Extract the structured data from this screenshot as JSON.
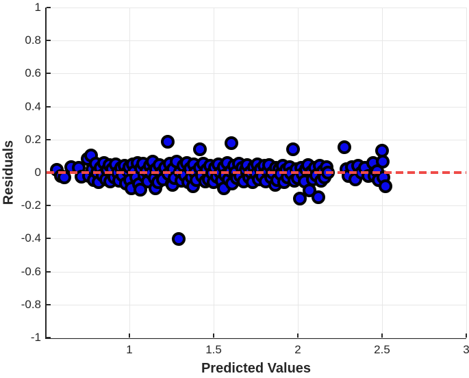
{
  "chart_data": {
    "type": "scatter",
    "title": "",
    "xlabel": "Predicted Values",
    "ylabel": "Residuals",
    "xlim": [
      0.508,
      3
    ],
    "ylim": [
      -1,
      1
    ],
    "grid": true,
    "legend": "none",
    "x_ticks": [
      1,
      1.5,
      2,
      2.5,
      3
    ],
    "x_tick_labels": [
      "1",
      "1.5",
      "2",
      "2.5",
      "3"
    ],
    "y_ticks": [
      -1,
      -0.8,
      -0.6,
      -0.4,
      -0.2,
      0,
      0.2,
      0.4,
      0.6,
      0.8,
      1
    ],
    "y_tick_labels": [
      "-1",
      "-0.8",
      "-0.6",
      "-0.4",
      "-0.2",
      "0",
      "0.2",
      "0.4",
      "0.6",
      "0.8",
      "1"
    ],
    "colors": {
      "marker_fill": "#0a0aeb",
      "marker_edge": "#000000",
      "zero_line": "#ef4b48",
      "axis": "#262626",
      "grid": "#e7e7e7",
      "text": "#262626"
    },
    "zero_line": {
      "y": 0,
      "style": "dashed"
    },
    "points": [
      [
        0.57,
        0.015
      ],
      [
        0.595,
        -0.02
      ],
      [
        0.615,
        -0.03
      ],
      [
        0.655,
        0.035
      ],
      [
        0.7,
        0.03
      ],
      [
        0.715,
        -0.025
      ],
      [
        0.752,
        0.083
      ],
      [
        0.772,
        0.104
      ],
      [
        0.76,
        -0.02
      ],
      [
        0.78,
        0.02
      ],
      [
        0.79,
        -0.045
      ],
      [
        0.8,
        0.055
      ],
      [
        0.81,
        0.0
      ],
      [
        0.815,
        -0.06
      ],
      [
        0.83,
        0.03
      ],
      [
        0.84,
        -0.015
      ],
      [
        0.85,
        0.06
      ],
      [
        0.86,
        -0.04
      ],
      [
        0.87,
        0.015
      ],
      [
        0.88,
        0.045
      ],
      [
        0.885,
        -0.055
      ],
      [
        0.9,
        0.02
      ],
      [
        0.91,
        -0.03
      ],
      [
        0.92,
        0.05
      ],
      [
        0.93,
        0.0
      ],
      [
        0.94,
        -0.05
      ],
      [
        0.95,
        0.03
      ],
      [
        0.96,
        -0.015
      ],
      [
        0.97,
        0.04
      ],
      [
        0.98,
        -0.065
      ],
      [
        0.99,
        0.01
      ],
      [
        1.0,
        0.035
      ],
      [
        1.005,
        -0.045
      ],
      [
        1.012,
        -0.095
      ],
      [
        1.02,
        0.05
      ],
      [
        1.03,
        0.005
      ],
      [
        1.04,
        -0.03
      ],
      [
        1.05,
        0.06
      ],
      [
        1.055,
        -0.07
      ],
      [
        1.065,
        -0.104
      ],
      [
        1.07,
        0.025
      ],
      [
        1.08,
        0.055
      ],
      [
        1.09,
        -0.02
      ],
      [
        1.1,
        0.01
      ],
      [
        1.11,
        -0.055
      ],
      [
        1.12,
        0.04
      ],
      [
        1.13,
        -0.005
      ],
      [
        1.14,
        0.065
      ],
      [
        1.15,
        -0.035
      ],
      [
        1.154,
        -0.095
      ],
      [
        1.16,
        0.02
      ],
      [
        1.17,
        -0.06
      ],
      [
        1.18,
        0.045
      ],
      [
        1.19,
        0.0
      ],
      [
        1.2,
        -0.04
      ],
      [
        1.21,
        0.03
      ],
      [
        1.228,
        0.187
      ],
      [
        1.23,
        -0.01
      ],
      [
        1.24,
        0.055
      ],
      [
        1.25,
        -0.065
      ],
      [
        1.256,
        -0.075
      ],
      [
        1.26,
        0.02
      ],
      [
        1.27,
        -0.035
      ],
      [
        1.28,
        0.065
      ],
      [
        1.293,
        -0.402
      ],
      [
        1.3,
        0.005
      ],
      [
        1.31,
        -0.05
      ],
      [
        1.32,
        0.04
      ],
      [
        1.33,
        -0.015
      ],
      [
        1.34,
        0.06
      ],
      [
        1.35,
        -0.06
      ],
      [
        1.36,
        0.025
      ],
      [
        1.37,
        -0.03
      ],
      [
        1.378,
        -0.083
      ],
      [
        1.38,
        0.05
      ],
      [
        1.39,
        0.0
      ],
      [
        1.4,
        -0.045
      ],
      [
        1.419,
        0.141
      ],
      [
        1.42,
        0.03
      ],
      [
        1.43,
        -0.02
      ],
      [
        1.44,
        0.055
      ],
      [
        1.45,
        -0.055
      ],
      [
        1.46,
        0.015
      ],
      [
        1.47,
        -0.04
      ],
      [
        1.48,
        0.04
      ],
      [
        1.49,
        -0.005
      ],
      [
        1.5,
        -0.06
      ],
      [
        1.51,
        0.03
      ],
      [
        1.52,
        -0.025
      ],
      [
        1.53,
        0.05
      ],
      [
        1.54,
        0.0
      ],
      [
        1.55,
        -0.05
      ],
      [
        1.561,
        -0.095
      ],
      [
        1.56,
        0.035
      ],
      [
        1.57,
        -0.015
      ],
      [
        1.58,
        0.06
      ],
      [
        1.59,
        -0.04
      ],
      [
        1.606,
        0.178
      ],
      [
        1.6,
        0.01
      ],
      [
        1.61,
        -0.065
      ],
      [
        1.62,
        0.04
      ],
      [
        1.63,
        0.0
      ],
      [
        1.64,
        -0.035
      ],
      [
        1.65,
        0.055
      ],
      [
        1.66,
        -0.02
      ],
      [
        1.67,
        0.03
      ],
      [
        1.68,
        -0.055
      ],
      [
        1.69,
        0.015
      ],
      [
        1.7,
        0.045
      ],
      [
        1.71,
        -0.03
      ],
      [
        1.72,
        0.005
      ],
      [
        1.73,
        -0.06
      ],
      [
        1.74,
        0.035
      ],
      [
        1.75,
        -0.01
      ],
      [
        1.76,
        0.05
      ],
      [
        1.77,
        -0.04
      ],
      [
        1.78,
        0.02
      ],
      [
        1.79,
        -0.02
      ],
      [
        1.8,
        0.04
      ],
      [
        1.81,
        -0.055
      ],
      [
        1.82,
        0.01
      ],
      [
        1.83,
        0.045
      ],
      [
        1.84,
        -0.03
      ],
      [
        1.85,
        0.0
      ],
      [
        1.866,
        -0.075
      ],
      [
        1.87,
        0.03
      ],
      [
        1.88,
        -0.045
      ],
      [
        1.89,
        0.02
      ],
      [
        1.9,
        -0.01
      ],
      [
        1.91,
        0.04
      ],
      [
        1.92,
        -0.06
      ],
      [
        1.93,
        0.015
      ],
      [
        1.94,
        -0.03
      ],
      [
        1.95,
        0.035
      ],
      [
        1.96,
        -0.005
      ],
      [
        1.972,
        0.141
      ],
      [
        1.98,
        -0.05
      ],
      [
        1.99,
        0.02
      ],
      [
        2.0,
        -0.035
      ],
      [
        2.012,
        -0.158
      ],
      [
        2.02,
        0.03
      ],
      [
        2.03,
        -0.01
      ],
      [
        2.04,
        -0.055
      ],
      [
        2.05,
        0.02
      ],
      [
        2.06,
        0.045
      ],
      [
        2.069,
        -0.108
      ],
      [
        2.08,
        0.005
      ],
      [
        2.09,
        -0.04
      ],
      [
        2.1,
        0.03
      ],
      [
        2.11,
        -0.015
      ],
      [
        2.122,
        -0.149
      ],
      [
        2.13,
        0.04
      ],
      [
        2.14,
        -0.05
      ],
      [
        2.15,
        0.01
      ],
      [
        2.16,
        -0.03
      ],
      [
        2.17,
        0.035
      ],
      [
        2.18,
        0.0
      ],
      [
        2.276,
        0.154
      ],
      [
        2.29,
        0.02
      ],
      [
        2.3,
        -0.02
      ],
      [
        2.32,
        0.035
      ],
      [
        2.34,
        -0.04
      ],
      [
        2.358,
        0.04
      ],
      [
        2.378,
        0.0
      ],
      [
        2.398,
        0.028
      ],
      [
        2.419,
        -0.02
      ],
      [
        2.447,
        0.058
      ],
      [
        2.455,
        -0.02
      ],
      [
        2.47,
        0.01
      ],
      [
        2.48,
        -0.045
      ],
      [
        2.5,
        0.133
      ],
      [
        2.505,
        0.068
      ],
      [
        2.51,
        -0.03
      ],
      [
        2.52,
        -0.083
      ]
    ]
  }
}
